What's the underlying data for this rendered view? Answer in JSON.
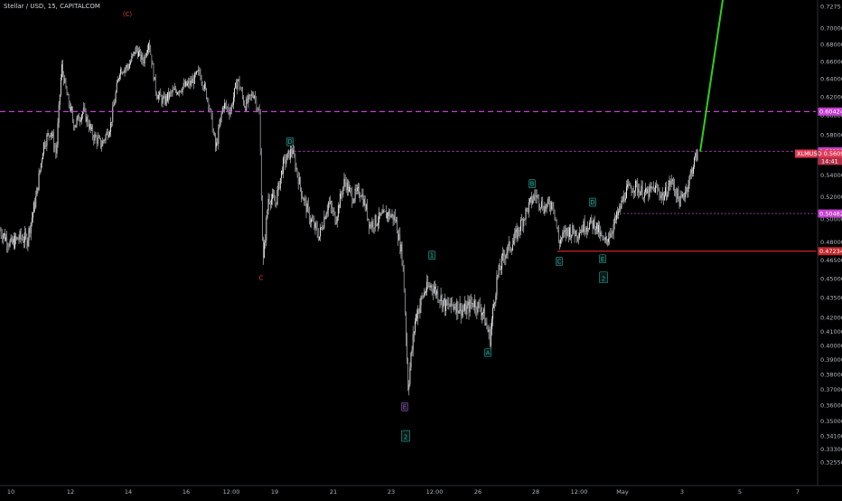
{
  "header": {
    "title": "Stellar / USD, 15, CAPITALCOM"
  },
  "colors": {
    "background": "#000000",
    "candle": "#ffffff",
    "accent_magenta": "#c43fd0",
    "current_price": "#e23a57",
    "support_red": "#c3282b",
    "projection_green": "#2dd11a",
    "wave_green": "#26a69a",
    "wave_red": "#e03b3b",
    "wave_purple": "#9c4dc8"
  },
  "chart_data": {
    "type": "candlestick",
    "symbol": "Stellar / USD",
    "timeframe": "15",
    "exchange": "CAPITALCOM",
    "yaxis_scale": "log",
    "ylim": [
      0.3225,
      0.7275
    ],
    "yticks": [
      {
        "value": 0.7275,
        "label": "0.7275"
      },
      {
        "value": 0.7,
        "label": "0.70000"
      },
      {
        "value": 0.68,
        "label": "0.68000"
      },
      {
        "value": 0.66,
        "label": "0.66000"
      },
      {
        "value": 0.64,
        "label": "0.64000"
      },
      {
        "value": 0.62,
        "label": "0.62000"
      },
      {
        "value": 0.6,
        "label": "0.60000"
      },
      {
        "value": 0.58,
        "label": "0.58000"
      },
      {
        "value": 0.56,
        "label": "0.56000"
      },
      {
        "value": 0.54,
        "label": "0.54000"
      },
      {
        "value": 0.52,
        "label": "0.52000"
      },
      {
        "value": 0.5,
        "label": "0.50000"
      },
      {
        "value": 0.48,
        "label": "0.48000"
      },
      {
        "value": 0.465,
        "label": "0.46500"
      },
      {
        "value": 0.45,
        "label": "0.45000"
      },
      {
        "value": 0.435,
        "label": "0.43500"
      },
      {
        "value": 0.42,
        "label": "0.42000"
      },
      {
        "value": 0.41,
        "label": "0.41000"
      },
      {
        "value": 0.4,
        "label": "0.40000"
      },
      {
        "value": 0.39,
        "label": "0.39000"
      },
      {
        "value": 0.38,
        "label": "0.38000"
      },
      {
        "value": 0.37,
        "label": "0.37000"
      },
      {
        "value": 0.36,
        "label": "0.36000"
      },
      {
        "value": 0.35,
        "label": "0.35000"
      },
      {
        "value": 0.341,
        "label": "0.34100"
      },
      {
        "value": 0.333,
        "label": "0.33300"
      },
      {
        "value": 0.3255,
        "label": "0.32550"
      }
    ],
    "xticks": [
      "10",
      "12",
      "14",
      "16",
      "12:00",
      "19",
      "21",
      "23",
      "12:00",
      "26",
      "28",
      "12:00",
      "May",
      "3",
      "5",
      "7"
    ],
    "price_path": [
      [
        0,
        0.49
      ],
      [
        12,
        0.478
      ],
      [
        22,
        0.484
      ],
      [
        30,
        0.482
      ],
      [
        40,
        0.52
      ],
      [
        48,
        0.57
      ],
      [
        56,
        0.585
      ],
      [
        62,
        0.56
      ],
      [
        68,
        0.655
      ],
      [
        74,
        0.62
      ],
      [
        82,
        0.59
      ],
      [
        92,
        0.605
      ],
      [
        102,
        0.58
      ],
      [
        112,
        0.57
      ],
      [
        122,
        0.59
      ],
      [
        132,
        0.65
      ],
      [
        142,
        0.655
      ],
      [
        150,
        0.675
      ],
      [
        158,
        0.66
      ],
      [
        164,
        0.685
      ],
      [
        172,
        0.625
      ],
      [
        180,
        0.615
      ],
      [
        190,
        0.625
      ],
      [
        200,
        0.63
      ],
      [
        210,
        0.635
      ],
      [
        220,
        0.648
      ],
      [
        230,
        0.615
      ],
      [
        238,
        0.565
      ],
      [
        246,
        0.612
      ],
      [
        254,
        0.605
      ],
      [
        262,
        0.64
      ],
      [
        270,
        0.61
      ],
      [
        280,
        0.625
      ],
      [
        286,
        0.6
      ],
      [
        290,
        0.46
      ],
      [
        296,
        0.52
      ],
      [
        304,
        0.515
      ],
      [
        312,
        0.55
      ],
      [
        322,
        0.565
      ],
      [
        332,
        0.525
      ],
      [
        342,
        0.5
      ],
      [
        352,
        0.485
      ],
      [
        362,
        0.515
      ],
      [
        370,
        0.5
      ],
      [
        380,
        0.535
      ],
      [
        388,
        0.52
      ],
      [
        398,
        0.525
      ],
      [
        408,
        0.495
      ],
      [
        418,
        0.5
      ],
      [
        428,
        0.505
      ],
      [
        436,
        0.5
      ],
      [
        444,
        0.465
      ],
      [
        450,
        0.372
      ],
      [
        458,
        0.42
      ],
      [
        468,
        0.44
      ],
      [
        476,
        0.445
      ],
      [
        484,
        0.437
      ],
      [
        492,
        0.428
      ],
      [
        502,
        0.43
      ],
      [
        512,
        0.425
      ],
      [
        522,
        0.432
      ],
      [
        532,
        0.425
      ],
      [
        540,
        0.405
      ],
      [
        548,
        0.45
      ],
      [
        556,
        0.47
      ],
      [
        566,
        0.48
      ],
      [
        574,
        0.495
      ],
      [
        582,
        0.51
      ],
      [
        590,
        0.522
      ],
      [
        600,
        0.51
      ],
      [
        610,
        0.515
      ],
      [
        616,
        0.48
      ],
      [
        626,
        0.49
      ],
      [
        636,
        0.488
      ],
      [
        646,
        0.495
      ],
      [
        656,
        0.496
      ],
      [
        666,
        0.478
      ],
      [
        674,
        0.49
      ],
      [
        682,
        0.505
      ],
      [
        690,
        0.525
      ],
      [
        700,
        0.53
      ],
      [
        712,
        0.522
      ],
      [
        722,
        0.528
      ],
      [
        732,
        0.52
      ],
      [
        740,
        0.535
      ],
      [
        750,
        0.515
      ],
      [
        758,
        0.53
      ],
      [
        766,
        0.555
      ],
      [
        770,
        0.563
      ]
    ],
    "horizontal_lines": [
      {
        "label": "0.60424",
        "value": 0.60424,
        "style": "dashed",
        "color": "#c43fd0"
      },
      {
        "label": "0.56338",
        "value": 0.56338,
        "style": "dashed",
        "color": "#c43fd0"
      },
      {
        "label": "0.50482",
        "value": 0.50482,
        "style": "dashed",
        "color": "#a03ab0"
      },
      {
        "label": "0.47234",
        "value": 0.47234,
        "style": "solid",
        "color": "#c3282b"
      }
    ],
    "current_price": {
      "label": "XLMUSD",
      "value": "0.56097",
      "sub": "14:41"
    },
    "projection": {
      "from": 0.563,
      "to": 0.7275,
      "color": "#2dd11a"
    },
    "wave_labels": [
      {
        "text": "(C)",
        "color": "#e03b3b",
        "x": 141,
        "price": 0.718
      },
      {
        "text": "C",
        "color": "#e03b3b",
        "x": 289,
        "price": 0.451
      },
      {
        "text": "D",
        "color": "#26a69a",
        "x": 321,
        "price": 0.573
      },
      {
        "text": "1",
        "color": "#26a69a",
        "x": 478,
        "price": 0.469
      },
      {
        "text": "E",
        "color": "#9c4dc8",
        "x": 448,
        "price": 0.359
      },
      {
        "text": "2",
        "color": "#26a69a",
        "x": 449,
        "price": 0.341,
        "big": true
      },
      {
        "text": "A",
        "color": "#26a69a",
        "x": 540,
        "price": 0.395
      },
      {
        "text": "B",
        "color": "#26a69a",
        "x": 589,
        "price": 0.532
      },
      {
        "text": "C",
        "color": "#26a69a",
        "x": 619,
        "price": 0.464
      },
      {
        "text": "D",
        "color": "#26a69a",
        "x": 656,
        "price": 0.515
      },
      {
        "text": "E",
        "color": "#26a69a",
        "x": 667,
        "price": 0.466
      },
      {
        "text": "2",
        "color": "#26a69a",
        "x": 668,
        "price": 0.451,
        "big": true
      }
    ]
  }
}
